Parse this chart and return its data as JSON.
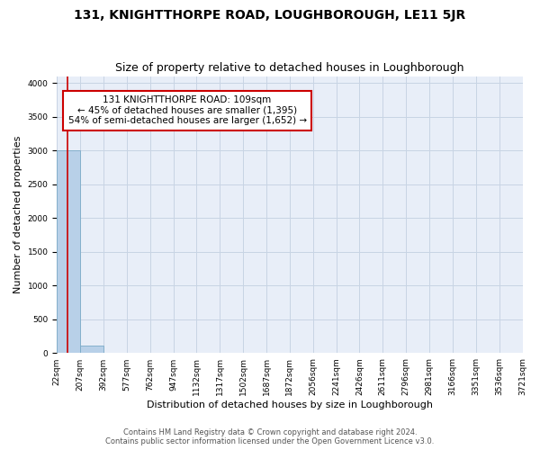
{
  "title": "131, KNIGHTTHORPE ROAD, LOUGHBOROUGH, LE11 5JR",
  "subtitle": "Size of property relative to detached houses in Loughborough",
  "xlabel": "Distribution of detached houses by size in Loughborough",
  "ylabel": "Number of detached properties",
  "bin_edges": [
    "22sqm",
    "207sqm",
    "392sqm",
    "577sqm",
    "762sqm",
    "947sqm",
    "1132sqm",
    "1317sqm",
    "1502sqm",
    "1687sqm",
    "1872sqm",
    "2056sqm",
    "2241sqm",
    "2426sqm",
    "2611sqm",
    "2796sqm",
    "2981sqm",
    "3166sqm",
    "3351sqm",
    "3536sqm",
    "3721sqm"
  ],
  "bar_heights": [
    3000,
    110,
    0,
    0,
    0,
    0,
    0,
    0,
    0,
    0,
    0,
    0,
    0,
    0,
    0,
    0,
    0,
    0,
    0,
    0
  ],
  "bar_color": "#b8d0e8",
  "bar_edge_color": "#7aaac8",
  "background_color": "#e8eef8",
  "grid_color": "#c8d4e4",
  "red_line_color": "#cc0000",
  "annotation_text": "131 KNIGHTTHORPE ROAD: 109sqm\n← 45% of detached houses are smaller (1,395)\n54% of semi-detached houses are larger (1,652) →",
  "annotation_box_color": "white",
  "annotation_box_edge_color": "#cc0000",
  "ylim": [
    0,
    4100
  ],
  "yticks": [
    0,
    500,
    1000,
    1500,
    2000,
    2500,
    3000,
    3500,
    4000
  ],
  "footer_line1": "Contains HM Land Registry data © Crown copyright and database right 2024.",
  "footer_line2": "Contains public sector information licensed under the Open Government Licence v3.0.",
  "property_size_sqm": 109,
  "title_fontsize": 10,
  "subtitle_fontsize": 9,
  "tick_fontsize": 6.5,
  "ylabel_fontsize": 8,
  "xlabel_fontsize": 8,
  "footer_fontsize": 6,
  "annot_fontsize": 7.5
}
